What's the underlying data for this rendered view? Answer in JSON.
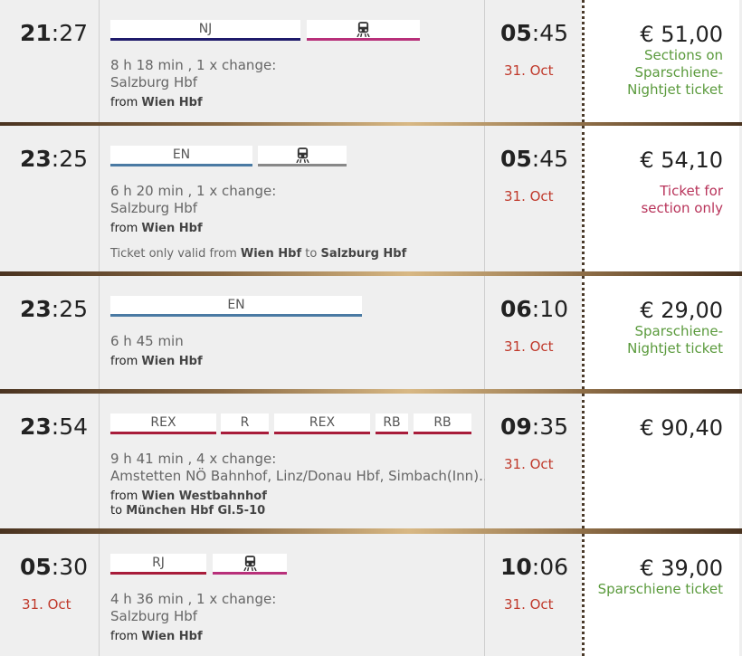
{
  "colors": {
    "nj": "#1f1b6b",
    "pink": "#b8307a",
    "en": "#4a7aa3",
    "gray": "#888888",
    "rex": "#a81c3a",
    "red": "#b8335a",
    "green": "#5a9a3c",
    "date": "#c0392b"
  },
  "rows": [
    {
      "dep_h": "21",
      "dep_m": ":27",
      "dep_date": "",
      "segments": [
        {
          "label": "NJ",
          "icon": ""
        },
        {
          "label": "",
          "icon": "train-icon"
        }
      ],
      "info1": "8 h 18 min , 1 x change:",
      "info2": "Salzburg Hbf",
      "from_prefix": "from ",
      "from": "Wien Hbf",
      "to_prefix": "",
      "to": "",
      "note_prefix": "",
      "note_from": "",
      "note_mid": "",
      "note_to": "",
      "arr_h": "05",
      "arr_m": ":45",
      "arr_date": "31. Oct",
      "price": "€ 51,00",
      "price_label": "Sections on Sparschiene-Nightjet ticket",
      "label_color": "green"
    },
    {
      "dep_h": "23",
      "dep_m": ":25",
      "dep_date": "",
      "segments": [
        {
          "label": "EN",
          "icon": ""
        },
        {
          "label": "",
          "icon": "train-icon"
        }
      ],
      "info1": "6 h 20 min , 1 x change:",
      "info2": "Salzburg Hbf",
      "from_prefix": "from ",
      "from": "Wien Hbf",
      "to_prefix": "",
      "to": "",
      "note_prefix": "Ticket only valid from ",
      "note_from": "Wien Hbf",
      "note_mid": " to ",
      "note_to": "Salzburg Hbf",
      "arr_h": "05",
      "arr_m": ":45",
      "arr_date": "31. Oct",
      "price": "€ 54,10",
      "price_label": "Ticket for section only",
      "label_color": "red"
    },
    {
      "dep_h": "23",
      "dep_m": ":25",
      "dep_date": "",
      "segments": [
        {
          "label": "EN",
          "icon": ""
        }
      ],
      "info1": "6 h 45 min",
      "info2": "",
      "from_prefix": "from ",
      "from": "Wien Hbf",
      "to_prefix": "",
      "to": "",
      "note_prefix": "",
      "note_from": "",
      "note_mid": "",
      "note_to": "",
      "arr_h": "06",
      "arr_m": ":10",
      "arr_date": "31. Oct",
      "price": "€ 29,00",
      "price_label": "Sparschiene-Nightjet ticket",
      "label_color": "green"
    },
    {
      "dep_h": "23",
      "dep_m": ":54",
      "dep_date": "",
      "segments": [
        {
          "label": "REX",
          "icon": ""
        },
        {
          "label": "R",
          "icon": ""
        },
        {
          "label": "REX",
          "icon": ""
        },
        {
          "label": "RB",
          "icon": ""
        },
        {
          "label": "RB",
          "icon": ""
        }
      ],
      "info1": "9 h 41 min , 4 x change:",
      "info2": "Amstetten NÖ Bahnhof, Linz/Donau Hbf, Simbach(Inn)…",
      "from_prefix": "from ",
      "from": "Wien Westbahnhof",
      "to_prefix": "to ",
      "to": "München Hbf Gl.5-10",
      "note_prefix": "",
      "note_from": "",
      "note_mid": "",
      "note_to": "",
      "arr_h": "09",
      "arr_m": ":35",
      "arr_date": "31. Oct",
      "price": "€ 90,40",
      "price_label": "",
      "label_color": "green"
    },
    {
      "dep_h": "05",
      "dep_m": ":30",
      "dep_date": "31. Oct",
      "segments": [
        {
          "label": "RJ",
          "icon": ""
        },
        {
          "label": "",
          "icon": "train-icon"
        }
      ],
      "info1": "4 h 36 min , 1 x change:",
      "info2": "Salzburg Hbf",
      "from_prefix": "from ",
      "from": "Wien Hbf",
      "to_prefix": "",
      "to": "",
      "note_prefix": "",
      "note_from": "",
      "note_mid": "",
      "note_to": "",
      "arr_h": "10",
      "arr_m": ":06",
      "arr_date": "31. Oct",
      "price": "€ 39,00",
      "price_label": "Sparschiene ticket",
      "label_color": "green"
    }
  ]
}
